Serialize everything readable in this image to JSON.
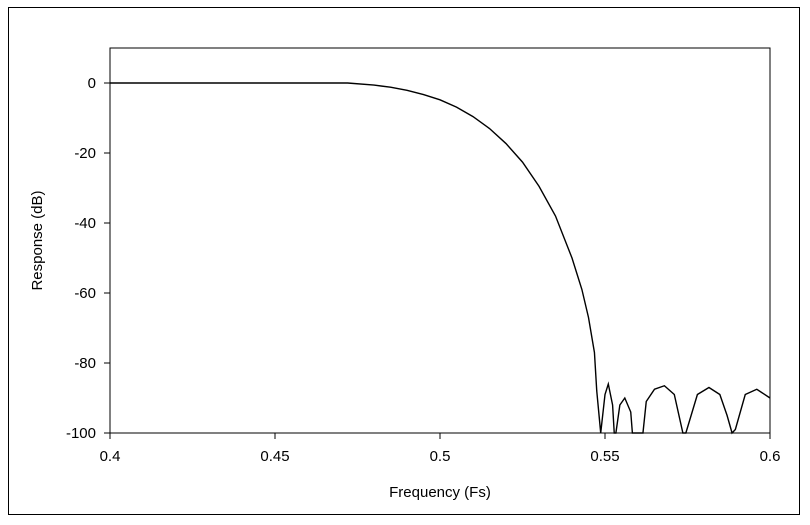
{
  "chart_data": {
    "type": "line",
    "title": "",
    "xlabel": "Frequency (Fs)",
    "ylabel": "Response (dB)",
    "xlim": [
      0.4,
      0.6
    ],
    "ylim": [
      -100,
      10
    ],
    "xticks": [
      0.4,
      0.45,
      0.5,
      0.55,
      0.6
    ],
    "xtick_labels": [
      "0.4",
      "0.45",
      "0.5",
      "0.55",
      "0.6"
    ],
    "yticks": [
      0,
      -20,
      -40,
      -60,
      -80,
      -100
    ],
    "ytick_labels": [
      "0",
      "-20",
      "-40",
      "-60",
      "-80",
      "-100"
    ],
    "grid": false,
    "legend": "none",
    "line_color": "#000000",
    "series": [
      {
        "x": [
          0.4,
          0.45,
          0.472,
          0.48,
          0.485,
          0.49,
          0.495,
          0.5,
          0.505,
          0.51,
          0.515,
          0.52,
          0.525,
          0.53,
          0.535,
          0.54,
          0.543,
          0.545,
          0.5468,
          0.5475,
          0.5487,
          0.55,
          0.551,
          0.5523,
          0.5528,
          0.5533,
          0.5545,
          0.556,
          0.5578,
          0.5583,
          0.5615,
          0.5625,
          0.565,
          0.568,
          0.571,
          0.5736,
          0.5745,
          0.578,
          0.5815,
          0.5848,
          0.587,
          0.5885,
          0.5895,
          0.5925,
          0.596,
          0.6
        ],
        "y": [
          0,
          0,
          0,
          -0.6,
          -1.2,
          -2.1,
          -3.3,
          -4.8,
          -6.9,
          -9.6,
          -13,
          -17.3,
          -22.6,
          -29.5,
          -38,
          -50,
          -59,
          -67,
          -77,
          -88,
          -100,
          -89,
          -86,
          -92,
          -100,
          -100,
          -92,
          -90,
          -94,
          -100,
          -100,
          -91,
          -87.5,
          -86.5,
          -89,
          -100,
          -100,
          -89,
          -87,
          -89,
          -95,
          -100,
          -99,
          -89,
          -87.5,
          -90
        ]
      }
    ]
  }
}
